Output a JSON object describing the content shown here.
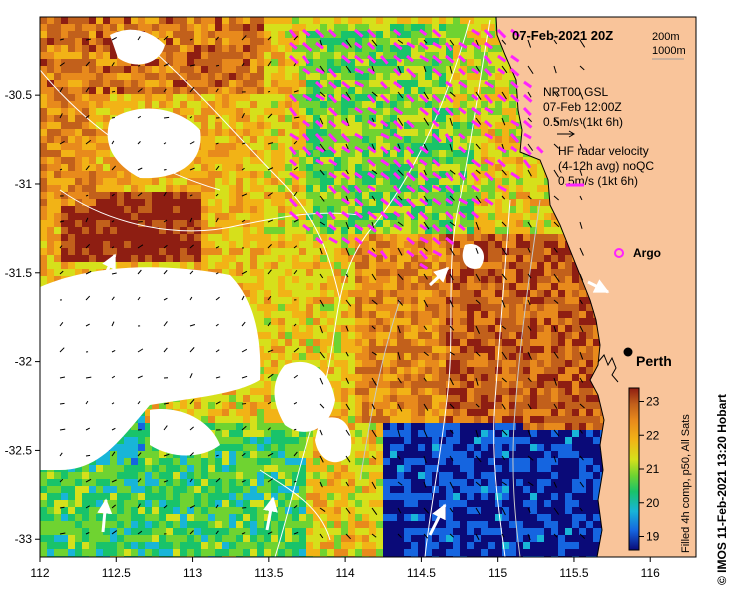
{
  "title": "07-Feb-2021 20Z",
  "depth_legend": {
    "line1": "200m",
    "line2": "1000m"
  },
  "gsl_legend": {
    "line1": "NRT00 GSL",
    "line2": "07-Feb 12:00Z",
    "line3": "0.5m/s (1kt 6h)"
  },
  "radar_legend": {
    "line1": "HF radar velocity",
    "line2": "(4-12h avg) noQC",
    "line3": "0.5m/s (1kt 6h)"
  },
  "argo_label": "Argo",
  "city_label": "Perth",
  "colorbar": {
    "label": "Filled 4h comp, p50, All Sats",
    "ticks": [
      "23",
      "22",
      "21",
      "20",
      "19"
    ],
    "tick_values": [
      23,
      22,
      21,
      20,
      19
    ],
    "min": 18.6,
    "max": 23.4
  },
  "credit": "© IMOS 11-Feb-2021 13:20 Hobart",
  "axes": {
    "x_ticks": [
      "112",
      "112.5",
      "113",
      "113.5",
      "114",
      "114.5",
      "115",
      "115.5",
      "116"
    ],
    "x_values": [
      112,
      112.5,
      113,
      113.5,
      114,
      114.5,
      115,
      115.5,
      116
    ],
    "y_ticks": [
      "-30.5",
      "-31",
      "-31.5",
      "-32",
      "-32.5",
      "-33"
    ],
    "y_values": [
      -30.5,
      -31,
      -31.5,
      -32,
      -32.5,
      -33
    ],
    "lon_range": [
      112,
      116.3
    ],
    "lat_range": [
      -33.1,
      -30.06
    ]
  },
  "colors": {
    "land": "#f9c49a",
    "radar_arrows": "#ff22ff",
    "gsl_arrows": "#000000",
    "contours": "#ffffff",
    "argo": "#ff22ff",
    "colormap": [
      "#0a0a78",
      "#1565e0",
      "#18b5d8",
      "#19c36a",
      "#6fd331",
      "#d6e01b",
      "#f2b316",
      "#e88a1c",
      "#c2601b",
      "#8e1e12"
    ]
  }
}
